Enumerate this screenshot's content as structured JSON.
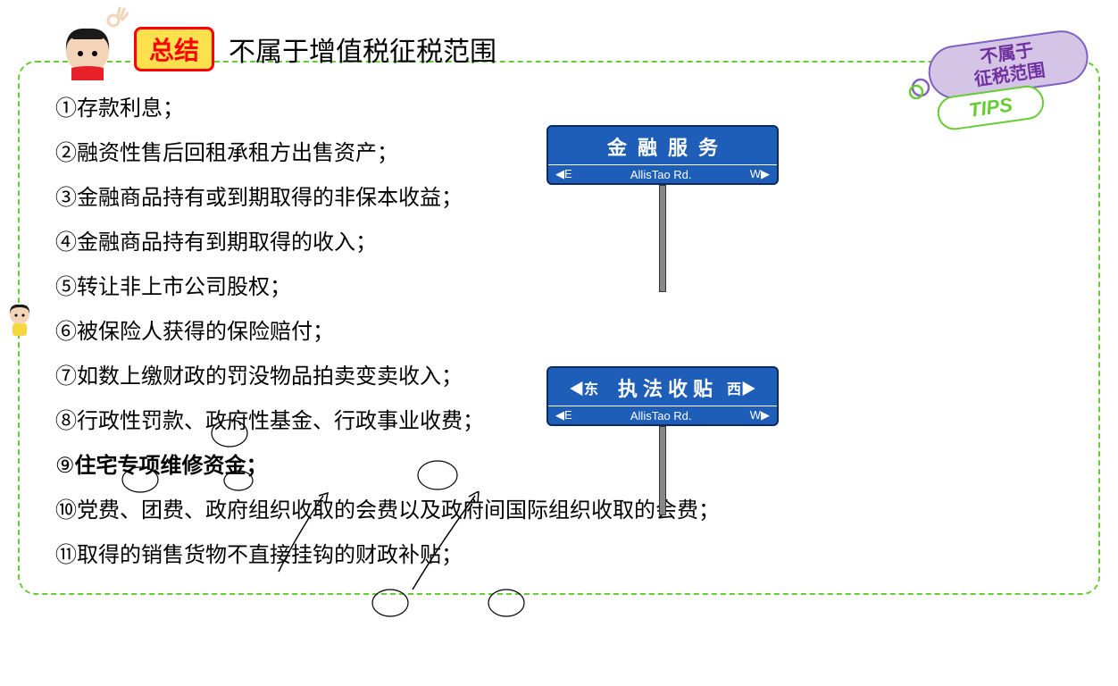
{
  "header": {
    "badge": "总结",
    "title": "不属于增值税征税范围"
  },
  "items": [
    {
      "num": "①",
      "text": "存款利息；"
    },
    {
      "num": "②",
      "text": "融资性售后回租承租方出售资产；"
    },
    {
      "num": "③",
      "text": "金融商品持有或到期取得的非保本收益；"
    },
    {
      "num": "④",
      "text": "金融商品持有到期取得的收入；"
    },
    {
      "num": "⑤",
      "text": "转让非上市公司股权；"
    },
    {
      "num": "⑥",
      "text": "被保险人获得的保险赔付；"
    },
    {
      "num": "⑦",
      "text": "如数上缴财政的罚没物品拍卖变卖收入；"
    },
    {
      "num": "⑧",
      "text": "行政性罚款、政府性基金、行政事业收费；"
    },
    {
      "num": "⑨",
      "text": "住宅专项维修资金；",
      "bold": true
    },
    {
      "num": "⑩",
      "text": "党费、团费、政府组织收取的会费以及政府间国际组织收取的会费；"
    },
    {
      "num": "⑪",
      "text": "取得的销售货物不直接挂钩的财政补贴；"
    }
  ],
  "signs": {
    "sign1": {
      "title": "金融服务",
      "road": "AllisTao  Rd.",
      "left": "◀E",
      "right": "W▶"
    },
    "sign2": {
      "title": "执法收贴",
      "cn_left": "◀东",
      "cn_right": "西▶",
      "road": "AllisTao  Rd.",
      "left": "◀E",
      "right": "W▶"
    }
  },
  "tags": {
    "tag1_line1": "不属于",
    "tag1_line2": "征税范围",
    "tag2": "TIPS"
  },
  "colors": {
    "border_dash": "#66cc33",
    "badge_bg": "#ffe04d",
    "badge_border": "#ff0000",
    "sign_bg": "#1e5db8",
    "tag1_bg": "#d4c5e6",
    "tag1_text": "#7030a0"
  }
}
